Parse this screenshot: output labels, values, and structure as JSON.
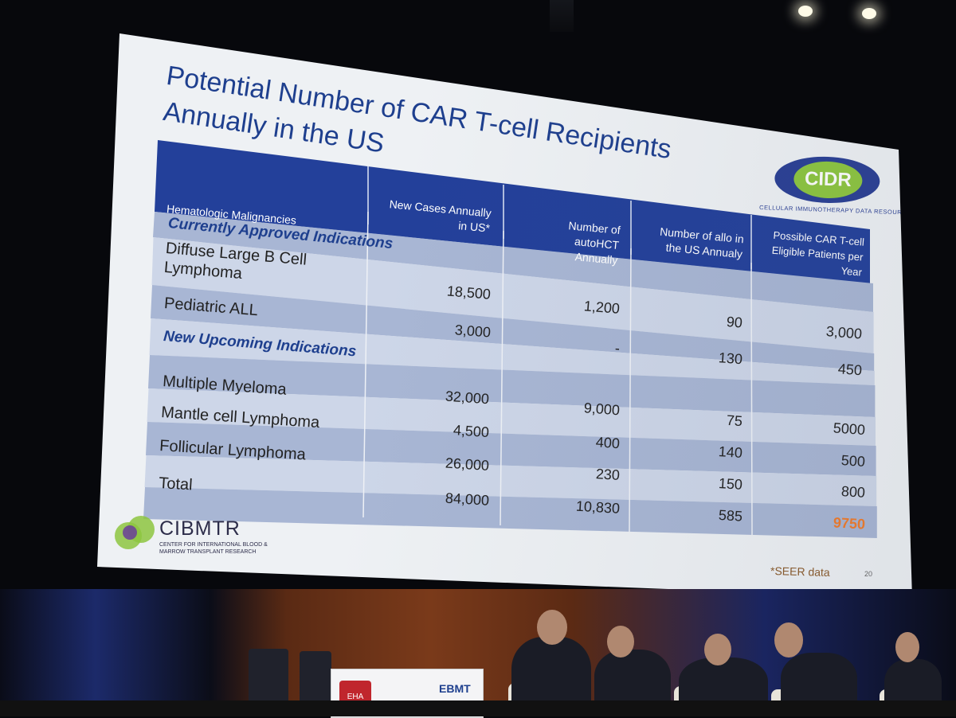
{
  "slide": {
    "title_line1": "Potential Number of CAR T-cell Recipients",
    "title_line2": "Annually in the US",
    "footnote": "*SEER data",
    "slide_number": "20"
  },
  "cidr_logo": {
    "text": "CIDR",
    "subtitle": "CELLULAR IMMUNOTHERAPY DATA RESOURCE"
  },
  "cibmtr_logo": {
    "text": "CIBMTR",
    "subtitle": "CENTER FOR INTERNATIONAL BLOOD & MARROW TRANSPLANT RESEARCH"
  },
  "table": {
    "headers": [
      "Hematologic Malignancies",
      "New Cases Annually in US*",
      "Number of autoHCT Annually",
      "Number of allo in the US Annualy",
      "Possible CAR T-cell Eligible Patients per Year"
    ],
    "section_approved": "Currently Approved Indications",
    "section_upcoming": "New Upcoming Indications",
    "rows": [
      {
        "name": "Diffuse Large B Cell Lymphoma",
        "new_cases": "18,500",
        "autohct": "1,200",
        "allo": "90",
        "car_t": "3,000"
      },
      {
        "name": "Pediatric ALL",
        "new_cases": "3,000",
        "autohct": "-",
        "allo": "130",
        "car_t": "450"
      },
      {
        "name": "Multiple Myeloma",
        "new_cases": "32,000",
        "autohct": "9,000",
        "allo": "75",
        "car_t": "5000"
      },
      {
        "name": "Mantle cell Lymphoma",
        "new_cases": "4,500",
        "autohct": "400",
        "allo": "140",
        "car_t": "500"
      },
      {
        "name": "Follicular Lymphoma",
        "new_cases": "26,000",
        "autohct": "230",
        "allo": "150",
        "car_t": "800"
      },
      {
        "name": "Total",
        "new_cases": "84,000",
        "autohct": "10,830",
        "allo": "585",
        "car_t": "9750"
      }
    ],
    "total_highlight_color": "#f07b2a",
    "header_color": "#23409a",
    "band_dark": "#a8b6d4",
    "band_light": "#cdd6e8"
  },
  "podium": {
    "left_logo": "EHA",
    "right_logo": "EBMT"
  }
}
